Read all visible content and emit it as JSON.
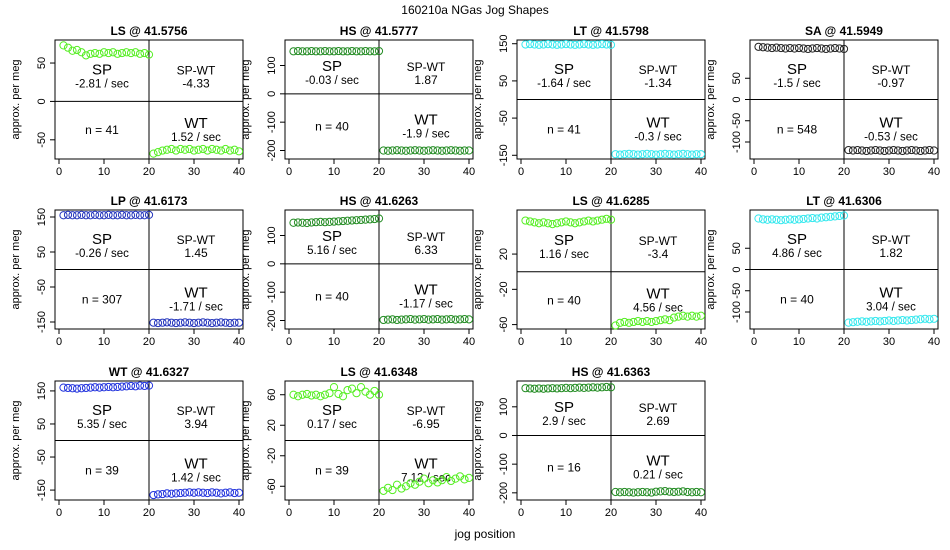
{
  "figure": {
    "title": "160210a   NGas Jog Shapes",
    "xlabel": "jog position",
    "ylabel": "approx. per meg"
  },
  "chart_data": [
    {
      "type": "scatter",
      "title": "LS @ 41.5756",
      "color": "#55ee22",
      "xlim": [
        0,
        40
      ],
      "ylim": [
        -75,
        80
      ],
      "xticks": [
        0,
        10,
        20,
        30,
        40
      ],
      "yticks": [
        -50,
        0,
        50
      ],
      "x": [
        1,
        2,
        3,
        4,
        5,
        6,
        7,
        8,
        9,
        10,
        11,
        12,
        13,
        14,
        15,
        16,
        17,
        18,
        19,
        20,
        21,
        22,
        23,
        24,
        25,
        26,
        27,
        28,
        29,
        30,
        31,
        32,
        33,
        34,
        35,
        36,
        37,
        38,
        39,
        40
      ],
      "y": [
        73,
        70,
        66,
        67,
        64,
        60,
        62,
        63,
        62,
        64,
        63,
        64,
        62,
        63,
        64,
        63,
        64,
        62,
        63,
        61,
        -68,
        -66,
        -64,
        -63,
        -62,
        -64,
        -62,
        -63,
        -62,
        -64,
        -63,
        -62,
        -64,
        -62,
        -63,
        -64,
        -62,
        -64,
        -63,
        -65
      ],
      "labels": {
        "sp": "SP",
        "sp_rate": "-2.81 / sec",
        "spwt": "SP-WT",
        "spwt_val": "-4.33",
        "n": "n = 41",
        "wt": "WT",
        "wt_rate": "1.52 / sec"
      }
    },
    {
      "type": "scatter",
      "title": "HS @ 41.5777",
      "color": "#228B22",
      "xlim": [
        0,
        40
      ],
      "ylim": [
        -230,
        190
      ],
      "xticks": [
        0,
        10,
        20,
        30,
        40
      ],
      "yticks": [
        -200,
        -100,
        0,
        100
      ],
      "x": [
        1,
        2,
        3,
        4,
        5,
        6,
        7,
        8,
        9,
        10,
        11,
        12,
        13,
        14,
        15,
        16,
        17,
        18,
        19,
        20,
        21,
        22,
        23,
        24,
        25,
        26,
        27,
        28,
        29,
        30,
        31,
        32,
        33,
        34,
        35,
        36,
        37,
        38,
        39,
        40
      ],
      "y": [
        150,
        151,
        150,
        150,
        151,
        150,
        150,
        151,
        150,
        150,
        151,
        150,
        150,
        151,
        150,
        150,
        151,
        150,
        150,
        151,
        -200,
        -201,
        -200,
        -199,
        -200,
        -201,
        -200,
        -199,
        -200,
        -201,
        -200,
        -199,
        -200,
        -201,
        -200,
        -199,
        -200,
        -201,
        -200,
        -200
      ],
      "labels": {
        "sp": "SP",
        "sp_rate": "-0.03 / sec",
        "spwt": "SP-WT",
        "spwt_val": "1.87",
        "n": "n = 40",
        "wt": "WT",
        "wt_rate": "-1.9 / sec"
      }
    },
    {
      "type": "scatter",
      "title": "LT @ 41.5798",
      "color": "#33e8ee",
      "xlim": [
        0,
        40
      ],
      "ylim": [
        -160,
        160
      ],
      "xticks": [
        0,
        10,
        20,
        30,
        40
      ],
      "yticks": [
        -150,
        -50,
        50,
        150
      ],
      "x": [
        1,
        2,
        3,
        4,
        5,
        6,
        7,
        8,
        9,
        10,
        11,
        12,
        13,
        14,
        15,
        16,
        17,
        18,
        19,
        20,
        21,
        22,
        23,
        24,
        25,
        26,
        27,
        28,
        29,
        30,
        31,
        32,
        33,
        34,
        35,
        36,
        37,
        38,
        39,
        40
      ],
      "y": [
        148,
        149,
        148,
        147,
        148,
        149,
        148,
        147,
        148,
        149,
        148,
        147,
        148,
        149,
        148,
        147,
        148,
        149,
        148,
        147,
        -147,
        -148,
        -147,
        -146,
        -147,
        -148,
        -147,
        -146,
        -147,
        -148,
        -147,
        -146,
        -147,
        -148,
        -147,
        -146,
        -147,
        -148,
        -147,
        -147
      ],
      "labels": {
        "sp": "SP",
        "sp_rate": "-1.64 / sec",
        "spwt": "SP-WT",
        "spwt_val": "-1.34",
        "n": "n = 41",
        "wt": "WT",
        "wt_rate": "-0.3 / sec"
      }
    },
    {
      "type": "scatter",
      "title": "SA @ 41.5949",
      "color": "#222222",
      "xlim": [
        0,
        40
      ],
      "ylim": [
        -140,
        140
      ],
      "xticks": [
        0,
        10,
        20,
        30,
        40
      ],
      "yticks": [
        -100,
        -50,
        0,
        50
      ],
      "x": [
        1,
        2,
        3,
        4,
        5,
        6,
        7,
        8,
        9,
        10,
        11,
        12,
        13,
        14,
        15,
        16,
        17,
        18,
        19,
        20,
        21,
        22,
        23,
        24,
        25,
        26,
        27,
        28,
        29,
        30,
        31,
        32,
        33,
        34,
        35,
        36,
        37,
        38,
        39,
        40
      ],
      "y": [
        124,
        123,
        122,
        121,
        122,
        121,
        120,
        121,
        120,
        121,
        120,
        119,
        120,
        121,
        120,
        119,
        120,
        121,
        120,
        119,
        -119,
        -120,
        -119,
        -120,
        -121,
        -120,
        -119,
        -120,
        -121,
        -120,
        -119,
        -120,
        -121,
        -120,
        -119,
        -120,
        -121,
        -120,
        -119,
        -120
      ],
      "labels": {
        "sp": "SP",
        "sp_rate": "-1.5 / sec",
        "spwt": "SP-WT",
        "spwt_val": "-0.97",
        "n": "n = 548",
        "wt": "WT",
        "wt_rate": "-0.53 / sec"
      }
    },
    {
      "type": "scatter",
      "title": "LP @ 41.6173",
      "color": "#2233bb",
      "xlim": [
        0,
        40
      ],
      "ylim": [
        -170,
        170
      ],
      "xticks": [
        0,
        10,
        20,
        30,
        40
      ],
      "yticks": [
        -150,
        -50,
        50,
        150
      ],
      "x": [
        1,
        2,
        3,
        4,
        5,
        6,
        7,
        8,
        9,
        10,
        11,
        12,
        13,
        14,
        15,
        16,
        17,
        18,
        19,
        20,
        21,
        22,
        23,
        24,
        25,
        26,
        27,
        28,
        29,
        30,
        31,
        32,
        33,
        34,
        35,
        36,
        37,
        38,
        39,
        40
      ],
      "y": [
        155,
        156,
        155,
        155,
        156,
        155,
        155,
        156,
        155,
        155,
        156,
        155,
        155,
        156,
        155,
        155,
        156,
        155,
        155,
        156,
        -152,
        -153,
        -152,
        -151,
        -152,
        -153,
        -152,
        -151,
        -152,
        -153,
        -152,
        -151,
        -152,
        -153,
        -152,
        -151,
        -152,
        -153,
        -152,
        -152
      ],
      "labels": {
        "sp": "SP",
        "sp_rate": "-0.26 / sec",
        "spwt": "SP-WT",
        "spwt_val": "1.45",
        "n": "n = 307",
        "wt": "WT",
        "wt_rate": "-1.71 / sec"
      }
    },
    {
      "type": "scatter",
      "title": "HS @ 41.6263",
      "color": "#228B22",
      "xlim": [
        0,
        40
      ],
      "ylim": [
        -230,
        190
      ],
      "xticks": [
        0,
        10,
        20,
        30,
        40
      ],
      "yticks": [
        -200,
        -100,
        0,
        100
      ],
      "x": [
        1,
        2,
        3,
        4,
        5,
        6,
        7,
        8,
        9,
        10,
        11,
        12,
        13,
        14,
        15,
        16,
        17,
        18,
        19,
        20,
        21,
        22,
        23,
        24,
        25,
        26,
        27,
        28,
        29,
        30,
        31,
        32,
        33,
        34,
        35,
        36,
        37,
        38,
        39,
        40
      ],
      "y": [
        145,
        146,
        145,
        144,
        146,
        147,
        148,
        147,
        148,
        149,
        150,
        151,
        152,
        153,
        154,
        155,
        156,
        157,
        158,
        160,
        -198,
        -197,
        -196,
        -198,
        -197,
        -196,
        -195,
        -197,
        -196,
        -195,
        -197,
        -196,
        -195,
        -197,
        -196,
        -195,
        -197,
        -196,
        -195,
        -196
      ],
      "labels": {
        "sp": "SP",
        "sp_rate": "5.16 / sec",
        "spwt": "SP-WT",
        "spwt_val": "6.33",
        "n": "n = 40",
        "wt": "WT",
        "wt_rate": "-1.17 / sec"
      }
    },
    {
      "type": "scatter",
      "title": "LS @ 41.6285",
      "color": "#55ee22",
      "xlim": [
        0,
        40
      ],
      "ylim": [
        -65,
        70
      ],
      "xticks": [
        0,
        10,
        20,
        30,
        40
      ],
      "yticks": [
        -60,
        -20,
        20
      ],
      "x": [
        1,
        2,
        3,
        4,
        5,
        6,
        7,
        8,
        9,
        10,
        11,
        12,
        13,
        14,
        15,
        16,
        17,
        18,
        19,
        20,
        21,
        22,
        23,
        24,
        25,
        26,
        27,
        28,
        29,
        30,
        31,
        32,
        33,
        34,
        35,
        36,
        37,
        38,
        39,
        40
      ],
      "y": [
        58,
        57,
        56,
        55,
        56,
        55,
        54,
        55,
        56,
        57,
        56,
        55,
        56,
        57,
        58,
        57,
        58,
        59,
        60,
        59,
        -61,
        -58,
        -57,
        -58,
        -57,
        -56,
        -57,
        -56,
        -57,
        -56,
        -55,
        -54,
        -55,
        -52,
        -51,
        -50,
        -51,
        -50,
        -51,
        -50
      ],
      "labels": {
        "sp": "SP",
        "sp_rate": "1.16 / sec",
        "spwt": "SP-WT",
        "spwt_val": "-3.4",
        "n": "n = 40",
        "wt": "WT",
        "wt_rate": "4.56 / sec"
      }
    },
    {
      "type": "scatter",
      "title": "LT @ 41.6306",
      "color": "#33e8ee",
      "xlim": [
        0,
        40
      ],
      "ylim": [
        -140,
        140
      ],
      "xticks": [
        0,
        10,
        20,
        30,
        40
      ],
      "yticks": [
        -100,
        -50,
        0,
        50
      ],
      "x": [
        1,
        2,
        3,
        4,
        5,
        6,
        7,
        8,
        9,
        10,
        11,
        12,
        13,
        14,
        15,
        16,
        17,
        18,
        19,
        20,
        21,
        22,
        23,
        24,
        25,
        26,
        27,
        28,
        29,
        30,
        31,
        32,
        33,
        34,
        35,
        36,
        37,
        38,
        39,
        40
      ],
      "y": [
        120,
        118,
        117,
        118,
        117,
        116,
        117,
        118,
        117,
        118,
        119,
        120,
        121,
        120,
        122,
        123,
        124,
        125,
        126,
        127,
        -125,
        -124,
        -123,
        -122,
        -123,
        -122,
        -121,
        -122,
        -121,
        -120,
        -121,
        -120,
        -119,
        -120,
        -119,
        -118,
        -117,
        -116,
        -117,
        -116
      ],
      "labels": {
        "sp": "SP",
        "sp_rate": "4.86 / sec",
        "spwt": "SP-WT",
        "spwt_val": "1.82",
        "n": "n = 40",
        "wt": "WT",
        "wt_rate": "3.04 / sec"
      }
    },
    {
      "type": "scatter",
      "title": "WT @ 41.6327",
      "color": "#2233dd",
      "xlim": [
        0,
        40
      ],
      "ylim": [
        -180,
        180
      ],
      "xticks": [
        0,
        10,
        20,
        30,
        40
      ],
      "yticks": [
        -150,
        -50,
        50,
        150
      ],
      "x": [
        1,
        2,
        3,
        4,
        5,
        6,
        7,
        8,
        9,
        10,
        11,
        12,
        13,
        14,
        15,
        16,
        17,
        18,
        19,
        20,
        21,
        22,
        23,
        24,
        25,
        26,
        27,
        28,
        29,
        30,
        31,
        32,
        33,
        34,
        35,
        36,
        37,
        38,
        39,
        40
      ],
      "y": [
        160,
        159,
        158,
        157,
        158,
        159,
        160,
        161,
        160,
        161,
        162,
        161,
        162,
        163,
        164,
        165,
        164,
        166,
        165,
        166,
        -165,
        -163,
        -162,
        -160,
        -161,
        -160,
        -159,
        -158,
        -157,
        -158,
        -157,
        -158,
        -159,
        -157,
        -158,
        -160,
        -158,
        -157,
        -159,
        -158
      ],
      "labels": {
        "sp": "SP",
        "sp_rate": "5.35 / sec",
        "spwt": "SP-WT",
        "spwt_val": "3.94",
        "n": "n = 39",
        "wt": "WT",
        "wt_rate": "1.42 / sec"
      }
    },
    {
      "type": "scatter",
      "title": "LS @ 41.6348",
      "color": "#55ee22",
      "xlim": [
        0,
        40
      ],
      "ylim": [
        -78,
        78
      ],
      "xticks": [
        0,
        10,
        20,
        30,
        40
      ],
      "yticks": [
        -60,
        -20,
        20,
        60
      ],
      "x": [
        1,
        2,
        3,
        4,
        5,
        6,
        7,
        8,
        9,
        10,
        11,
        12,
        13,
        14,
        15,
        16,
        17,
        18,
        19,
        20,
        21,
        22,
        23,
        24,
        25,
        26,
        27,
        28,
        29,
        30,
        31,
        32,
        33,
        34,
        35,
        36,
        37,
        38,
        39,
        40
      ],
      "y": [
        60,
        58,
        60,
        61,
        59,
        60,
        58,
        60,
        62,
        70,
        61,
        58,
        66,
        68,
        62,
        70,
        64,
        60,
        65,
        60,
        -66,
        -62,
        -65,
        -58,
        -63,
        -60,
        -56,
        -58,
        -54,
        -50,
        -56,
        -52,
        -55,
        -52,
        -48,
        -53,
        -50,
        -47,
        -51,
        -49
      ],
      "labels": {
        "sp": "SP",
        "sp_rate": "0.17 / sec",
        "spwt": "SP-WT",
        "spwt_val": "-6.95",
        "n": "n = 39",
        "wt": "WT",
        "wt_rate": "7.12 / sec"
      }
    },
    {
      "type": "scatter",
      "title": "HS @ 41.6363",
      "color": "#228B22",
      "xlim": [
        0,
        40
      ],
      "ylim": [
        -225,
        190
      ],
      "xticks": [
        0,
        10,
        20,
        30,
        40
      ],
      "yticks": [
        -200,
        -100,
        0,
        100
      ],
      "x": [
        1,
        2,
        3,
        4,
        5,
        6,
        7,
        8,
        9,
        10,
        11,
        12,
        13,
        14,
        15,
        16,
        17,
        18,
        19,
        20,
        21,
        22,
        23,
        24,
        25,
        26,
        27,
        28,
        29,
        30,
        31,
        32,
        33,
        34,
        35,
        36,
        37,
        38,
        39,
        40
      ],
      "y": [
        165,
        164,
        163,
        164,
        163,
        164,
        165,
        164,
        165,
        166,
        165,
        166,
        167,
        166,
        167,
        168,
        167,
        168,
        169,
        168,
        -197,
        -198,
        -197,
        -198,
        -199,
        -198,
        -197,
        -198,
        -199,
        -196,
        -195,
        -194,
        -196,
        -197,
        -196,
        -195,
        -197,
        -198,
        -197,
        -198
      ],
      "labels": {
        "sp": "SP",
        "sp_rate": "2.9 / sec",
        "spwt": "SP-WT",
        "spwt_val": "2.69",
        "n": "n = 16",
        "wt": "WT",
        "wt_rate": "0.21 / sec"
      }
    }
  ]
}
